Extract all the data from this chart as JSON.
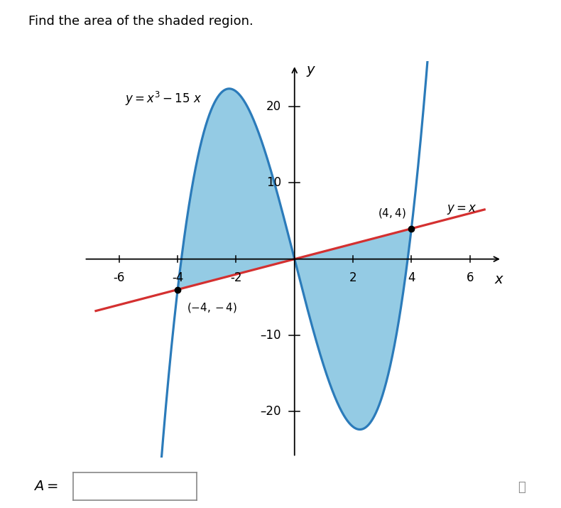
{
  "title": "Find the area of the shaded region.",
  "curve_label": "$y = x^3 - 15\\,x$",
  "line_label": "$y = x$",
  "point1": [
    -4,
    -4
  ],
  "point2": [
    4,
    4
  ],
  "point1_label": "$(-4, -4)$",
  "point2_label": "$(4, 4)$",
  "xlim": [
    -7.2,
    7.2
  ],
  "ylim": [
    -26,
    26
  ],
  "xticks": [
    -6,
    -4,
    -2,
    2,
    4,
    6
  ],
  "yticks": [
    -20,
    -10,
    10,
    20
  ],
  "shade_color": "#5bafd6",
  "shade_alpha": 0.65,
  "curve_color": "#2b7bba",
  "line_color": "#d43030",
  "bg_color": "#ffffff",
  "xlabel": "$x$",
  "ylabel": "$y$",
  "curve_xmin": -4.85,
  "curve_xmax": 4.85,
  "line_xmin": -6.8,
  "line_xmax": 6.5
}
